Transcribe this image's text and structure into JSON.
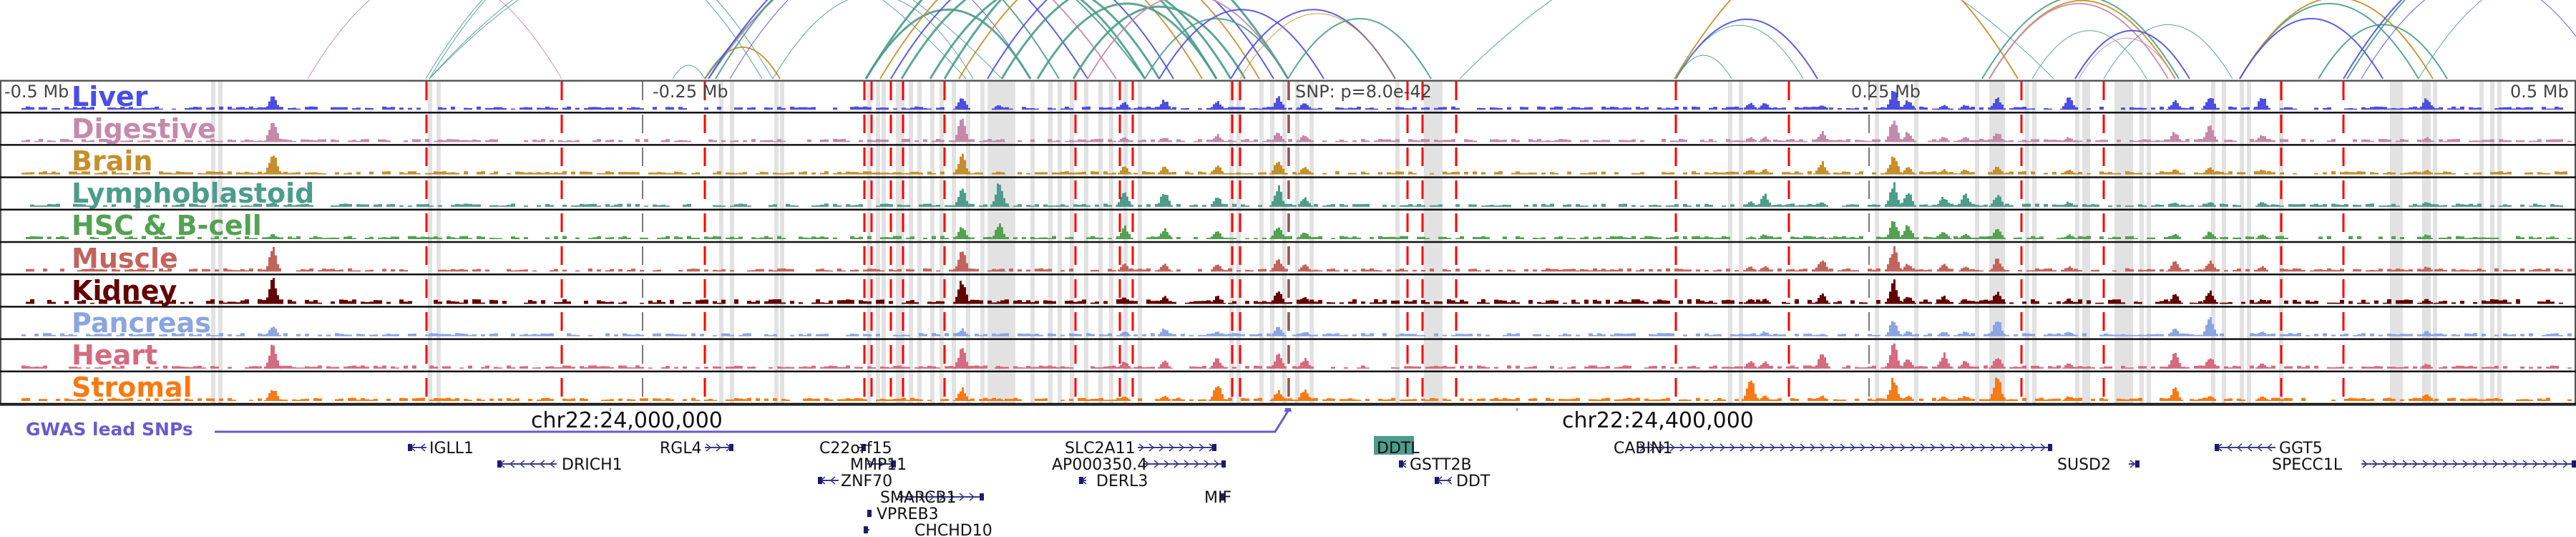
{
  "tracks": [
    {
      "label": "Liver",
      "color": "#4b4ee0"
    },
    {
      "label": "Digestive",
      "color": "#c48aab"
    },
    {
      "label": "Brain",
      "color": "#c58f2b"
    },
    {
      "label": "Lymphoblastoid",
      "color": "#4d9c8c"
    },
    {
      "label": "HSC & B-cell",
      "color": "#54a152"
    },
    {
      "label": "Muscle",
      "color": "#c2645d"
    },
    {
      "label": "Kidney",
      "color": "#630000"
    },
    {
      "label": "Pancreas",
      "color": "#8aa5e0"
    },
    {
      "label": "Heart",
      "color": "#d46b80"
    },
    {
      "label": "Stromal",
      "color": "#f77a14"
    }
  ],
  "axis": {
    "left_label": "-0.5 Mb",
    "mid_left_label": "-0.25 Mb",
    "snp_label": "SNP: p=8.0e-42",
    "mid_right_label": "0.25 Mb",
    "right_label": "0.5 Mb"
  },
  "coordinates": {
    "chr_left": "chr22:24,000,000",
    "chr_right": "chr22:24,400,000"
  },
  "gwas": {
    "label": "GWAS lead SNPs",
    "color": "#6a5acd"
  },
  "genes": [
    {
      "name": "IGLL1",
      "strand": "-"
    },
    {
      "name": "DRICH1",
      "strand": "-"
    },
    {
      "name": "RGL4",
      "strand": "+"
    },
    {
      "name": "C22orf15",
      "strand": "+"
    },
    {
      "name": "MMP11",
      "strand": "+"
    },
    {
      "name": "ZNF70",
      "strand": "-"
    },
    {
      "name": "SMARCB1",
      "strand": "+"
    },
    {
      "name": "VPREB3",
      "strand": "+"
    },
    {
      "name": "CHCHD10",
      "strand": "-"
    },
    {
      "name": "SLC2A11",
      "strand": "+"
    },
    {
      "name": "AP000350.4",
      "strand": "+"
    },
    {
      "name": "DERL3",
      "strand": "-"
    },
    {
      "name": "MIF",
      "strand": "+"
    },
    {
      "name": "DDTL",
      "strand": "+",
      "highlighted": true
    },
    {
      "name": "GSTT2B",
      "strand": "-"
    },
    {
      "name": "DDT",
      "strand": "-"
    },
    {
      "name": "CABIN1",
      "strand": "+"
    },
    {
      "name": "SUSD2",
      "strand": "+"
    },
    {
      "name": "GGT5",
      "strand": "-"
    },
    {
      "name": "SPECC1L",
      "strand": "+"
    }
  ],
  "highlight_color": "#4d9c8c"
}
